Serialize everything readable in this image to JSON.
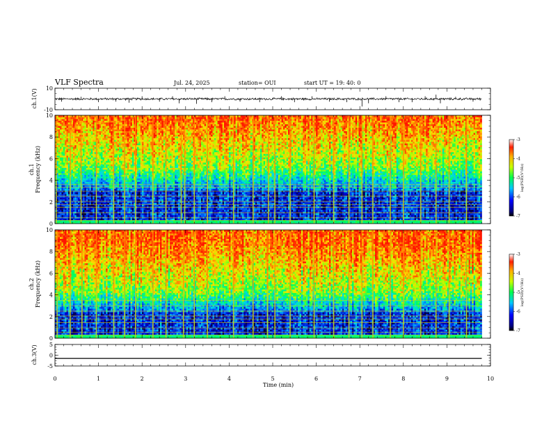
{
  "header": {
    "title": "VLF Spectra",
    "date": "Jul. 24, 2025",
    "station": "station= OUI",
    "start": "start UT =  19: 40: 0"
  },
  "chart_data": [
    {
      "type": "line",
      "panel": "waveform-ch1",
      "ylabel": "ch.1(V)",
      "ylim": [
        -10,
        10
      ],
      "yticks": [
        "10",
        "-10"
      ],
      "xlim": [
        0,
        10
      ],
      "x_end": 9.8,
      "baseline": 0,
      "noise_amplitude": 0.6,
      "spikes": [
        {
          "x": 0.15,
          "v": -2.5
        },
        {
          "x": 0.6,
          "v": 2.0
        },
        {
          "x": 1.0,
          "v": -3.0
        },
        {
          "x": 1.4,
          "v": -2.5
        },
        {
          "x": 1.7,
          "v": -3.5
        },
        {
          "x": 2.0,
          "v": 2.5
        },
        {
          "x": 2.4,
          "v": -2.5
        },
        {
          "x": 2.7,
          "v": 2.5
        },
        {
          "x": 2.85,
          "v": -4.0
        },
        {
          "x": 3.25,
          "v": -4.5
        },
        {
          "x": 3.6,
          "v": -3.0
        },
        {
          "x": 3.9,
          "v": 2.5
        },
        {
          "x": 4.25,
          "v": -2.5
        },
        {
          "x": 4.7,
          "v": -3.0
        },
        {
          "x": 5.2,
          "v": 2.5
        },
        {
          "x": 5.5,
          "v": -3.0
        },
        {
          "x": 5.9,
          "v": 2.5
        },
        {
          "x": 6.3,
          "v": -2.5
        },
        {
          "x": 6.7,
          "v": -3.0
        },
        {
          "x": 7.05,
          "v": -7.0
        },
        {
          "x": 7.2,
          "v": -4.0
        },
        {
          "x": 7.6,
          "v": 2.5
        },
        {
          "x": 7.9,
          "v": -3.0
        },
        {
          "x": 8.2,
          "v": -3.0
        },
        {
          "x": 8.5,
          "v": 2.5
        },
        {
          "x": 8.75,
          "v": 4.0
        },
        {
          "x": 8.85,
          "v": -4.0
        },
        {
          "x": 9.2,
          "v": 2.0
        },
        {
          "x": 9.6,
          "v": -2.5
        }
      ]
    },
    {
      "type": "heatmap",
      "panel": "spectrogram-ch1",
      "ylabel_line1": "ch.1",
      "ylabel_line2": "Frequency (kHz)",
      "ylim": [
        0,
        10
      ],
      "yticks": [
        "0",
        "2",
        "4",
        "6",
        "8",
        "10"
      ],
      "xlim": [
        0,
        10
      ],
      "x_end": 9.8,
      "transition_khz": 4.0,
      "line_freqs_khz": [
        0.3,
        0.55,
        1.0,
        1.5,
        1.75,
        2.05,
        2.55,
        3.0,
        3.35,
        3.6
      ],
      "impulse_times_min": [
        0.03,
        0.35,
        0.6,
        0.95,
        1.35,
        1.6,
        1.85,
        2.25,
        2.55,
        2.9,
        2.98,
        3.2,
        3.5,
        4.1,
        4.55,
        4.9,
        5.05,
        5.4,
        5.95,
        6.4,
        6.75,
        7.05,
        7.3,
        7.7,
        8.0,
        8.4,
        8.75,
        9.05,
        9.45
      ],
      "colorbar": {
        "label": "log(PSD)(V²/Hz)",
        "ticks": [
          "-3",
          "-4",
          "-5",
          "-6",
          "-7"
        ],
        "range": [
          -7,
          -3
        ]
      }
    },
    {
      "type": "heatmap",
      "panel": "spectrogram-ch2",
      "ylabel_line1": "ch.2",
      "ylabel_line2": "Frequency (kHz)",
      "ylim": [
        0,
        10
      ],
      "yticks": [
        "0",
        "2",
        "4",
        "6",
        "8",
        "10"
      ],
      "xlim": [
        0,
        10
      ],
      "x_end": 9.8,
      "transition_khz": 3.3,
      "line_freqs_khz": [
        0.3,
        0.55,
        0.95,
        1.45,
        1.75,
        2.05,
        2.5,
        3.0,
        3.5
      ],
      "impulse_times_min": [
        0.05,
        0.35,
        0.62,
        0.95,
        1.35,
        1.6,
        1.85,
        2.25,
        2.55,
        2.95,
        3.2,
        3.5,
        4.1,
        4.55,
        4.88,
        5.05,
        5.4,
        5.95,
        6.4,
        6.75,
        7.05,
        7.3,
        7.7,
        8.0,
        8.4,
        8.75,
        9.05,
        9.45
      ],
      "colorbar": {
        "label": "log(PSD)(V²/Hz)",
        "ticks": [
          "-3",
          "-4",
          "-5",
          "-6",
          "-7"
        ],
        "range": [
          -7,
          -3
        ]
      }
    },
    {
      "type": "line",
      "panel": "waveform-ch3",
      "ylabel": "ch.3(V)",
      "ylim": [
        -5,
        5
      ],
      "yticks": [
        "5",
        "0",
        "-5"
      ],
      "xlim": [
        0,
        10
      ],
      "x_end": 9.8,
      "baseline": -1.5
    }
  ],
  "xaxis": {
    "label": "Time (min)",
    "ticks": [
      "0",
      "1",
      "2",
      "3",
      "4",
      "5",
      "6",
      "7",
      "8",
      "9",
      "10"
    ],
    "range": [
      0,
      10
    ]
  }
}
